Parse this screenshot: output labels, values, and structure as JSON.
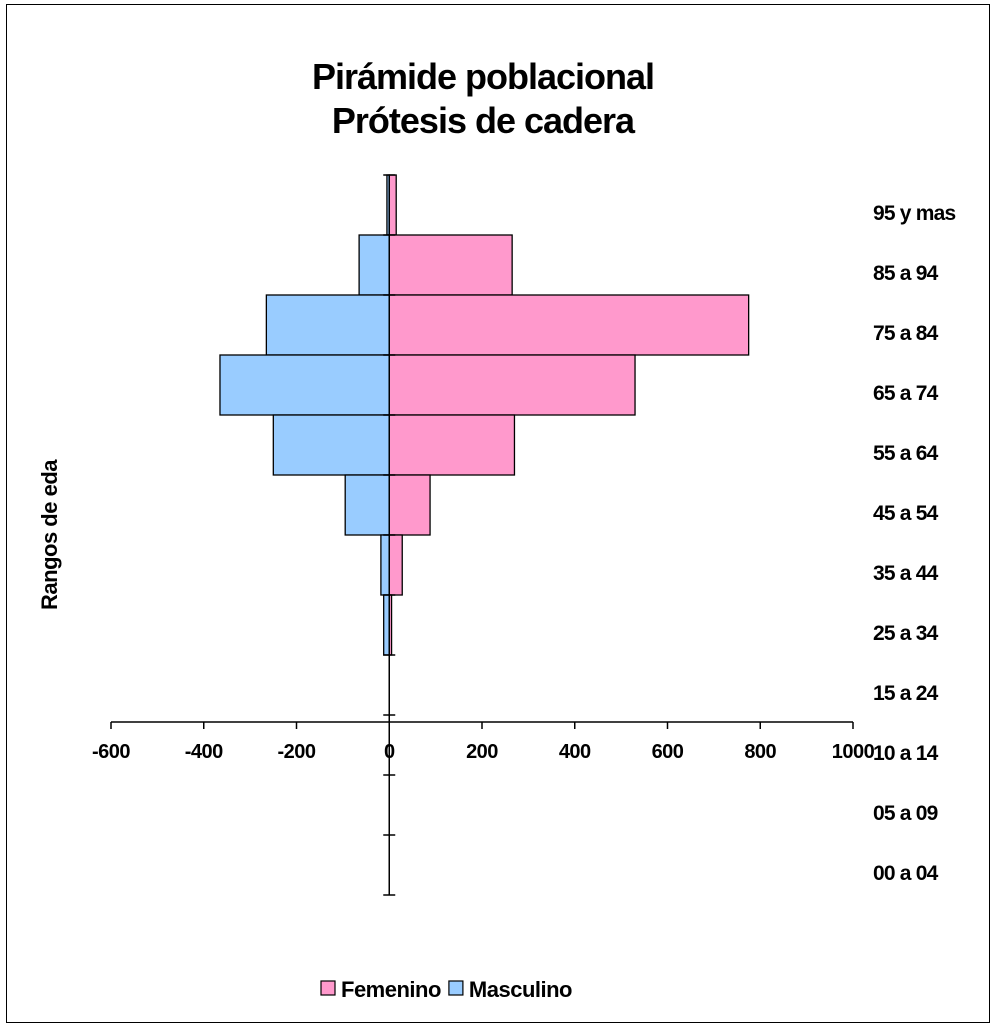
{
  "chart_data": {
    "type": "bar",
    "orientation": "horizontal",
    "title": [
      "Pirámide poblacional",
      "Prótesis de cadera"
    ],
    "ylabel": "Rangos de eda",
    "categories": [
      "95 y mas",
      "85 a 94",
      "75 a 84",
      "65 a 74",
      "55 a 64",
      "45 a 54",
      "35 a 44",
      "25 a 34",
      "15 a 24",
      "10 a 14",
      "05 a 09",
      "00 a 04"
    ],
    "series": [
      {
        "name": "Femenino",
        "color": "#FF99CC",
        "values": [
          15,
          265,
          775,
          530,
          270,
          88,
          28,
          5,
          0,
          0,
          0,
          0
        ]
      },
      {
        "name": "Masculino",
        "color": "#99CCFF",
        "values": [
          -5,
          -65,
          -265,
          -365,
          -250,
          -95,
          -18,
          -12,
          0,
          0,
          0,
          0
        ]
      }
    ],
    "xlim": [
      -600,
      1000
    ],
    "xticks": [
      "-600",
      "-400",
      "-200",
      "0",
      "200",
      "400",
      "600",
      "800",
      "1000"
    ],
    "grid": false,
    "legend": "bottom"
  }
}
